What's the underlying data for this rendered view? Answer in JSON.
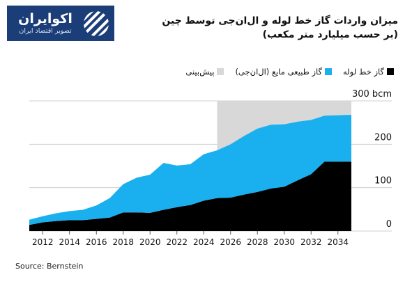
{
  "logo": {
    "name": "اکوایران",
    "tagline": "تصویر اقتصاد ایران",
    "icon": "stripes-icon",
    "color": "#1b3d78"
  },
  "title": {
    "line1": "میزان واردات گاز خط لوله و ال‌ان‌جی توسط چین",
    "line2": "(بر حسب میلیارد متر مکعب)"
  },
  "source": "Source: Bernstein",
  "chart_data": {
    "type": "area",
    "stacked": true,
    "x": [
      2011,
      2012,
      2013,
      2014,
      2015,
      2016,
      2017,
      2018,
      2019,
      2020,
      2021,
      2022,
      2023,
      2024,
      2025,
      2026,
      2027,
      2028,
      2029,
      2030,
      2031,
      2032,
      2033,
      2034,
      2035
    ],
    "series": [
      {
        "name": "گاز خط لوله",
        "color": "#000000",
        "values": [
          14,
          20,
          23,
          25,
          25,
          28,
          31,
          43,
          43,
          42,
          49,
          55,
          60,
          70,
          76,
          77,
          84,
          90,
          98,
          102,
          117,
          131,
          160,
          160,
          160
        ]
      },
      {
        "name": "گاز طبیعی مایع (ال‌ان‌جی)",
        "color": "#1ab0ef",
        "values": [
          12,
          14,
          18,
          21,
          24,
          31,
          45,
          65,
          80,
          88,
          108,
          96,
          94,
          107,
          110,
          123,
          135,
          146,
          147,
          144,
          135,
          125,
          106,
          107,
          108
        ]
      }
    ],
    "forecast": {
      "label": "پیش‌بینی",
      "color": "#d8d8d8",
      "from": 2025,
      "to": 2035
    },
    "legend_order": [
      "گاز خط لوله",
      "گاز طبیعی مایع (ال‌ان‌جی)",
      "پیش‌بینی"
    ],
    "legend_placement": "top-right",
    "y_ticks": [
      {
        "value": 0,
        "label": "0"
      },
      {
        "value": 100,
        "label": "100"
      },
      {
        "value": 200,
        "label": "200"
      },
      {
        "value": 300,
        "label": "300 bcm"
      }
    ],
    "x_ticks": [
      "2012",
      "2014",
      "2016",
      "2018",
      "2020",
      "2022",
      "2024",
      "2026",
      "2028",
      "2030",
      "2032",
      "2034"
    ],
    "ylim": [
      0,
      300
    ],
    "xlim": [
      2011,
      2035
    ],
    "grid": true
  }
}
